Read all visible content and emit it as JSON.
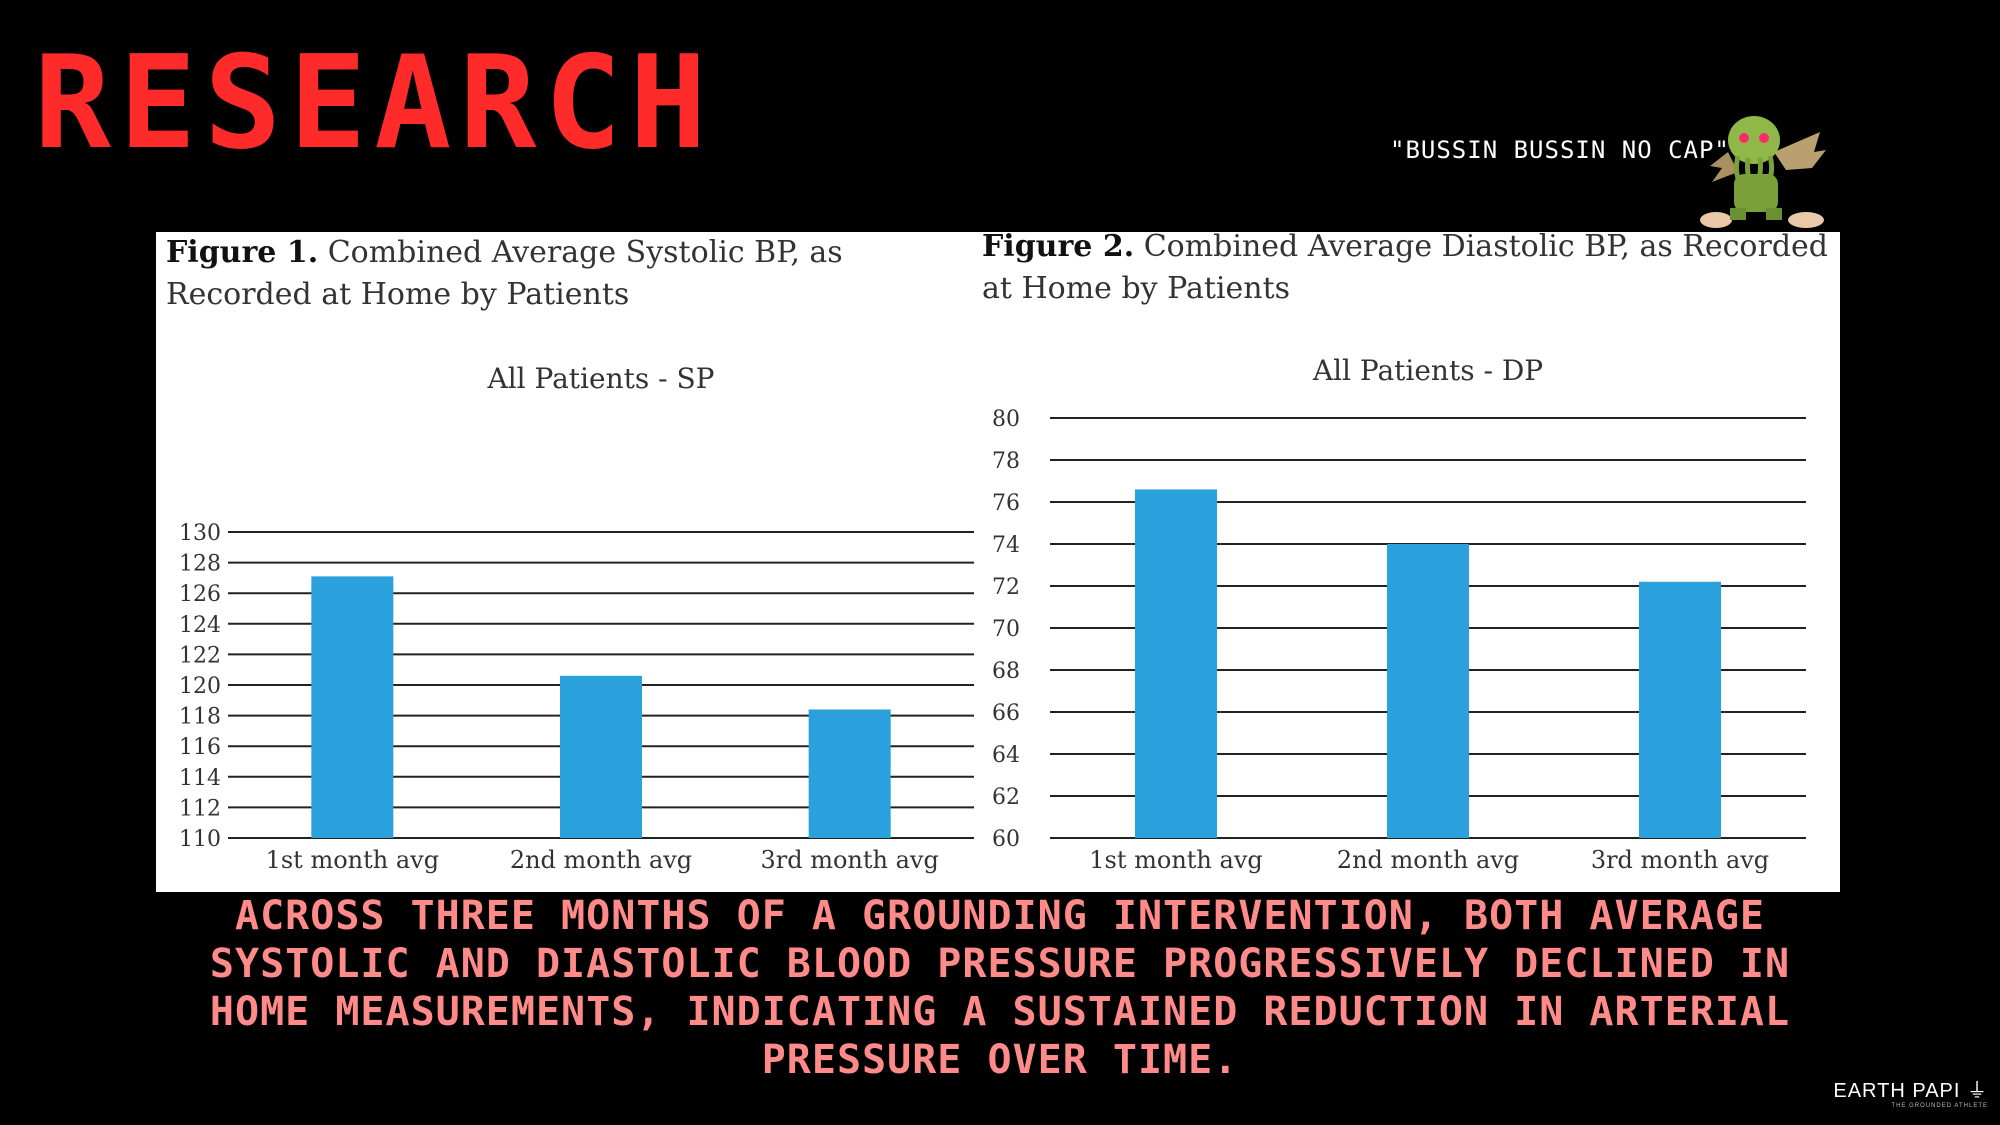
{
  "slide": {
    "title": "RESEARCH",
    "quote": "\"BUSSIN BUSSIN NO CAP\"",
    "summary": "ACROSS THREE MONTHS OF A GROUNDING INTERVENTION, BOTH AVERAGE SYSTOLIC AND DIASTOLIC BLOOD PRESSURE PROGRESSIVELY DECLINED IN HOME MEASUREMENTS, INDICATING A SUSTAINED REDUCTION IN ARTERIAL PRESSURE OVER TIME.",
    "brand": "EARTH PAPI",
    "brand_symbol": "⏚",
    "brand_tagline": "THE GROUNDED ATHLETE",
    "mascot_icon": "tentacled-creature-icon"
  },
  "figures": [
    {
      "label": "Figure 1.",
      "caption": "Combined Average Systolic BP, as Recorded at Home by Patients"
    },
    {
      "label": "Figure 2.",
      "caption": "Combined Average Diastolic BP, as Recorded at Home by Patients"
    }
  ],
  "colors": {
    "title": "#ff2a2a",
    "summary": "#ff8a8a",
    "bar": "#2aa0dc",
    "background": "#000000"
  },
  "chart_data": [
    {
      "type": "bar",
      "title": "All Patients - SP",
      "categories": [
        "1st month avg",
        "2nd month avg",
        "3rd month avg"
      ],
      "values": [
        127.1,
        120.6,
        118.4
      ],
      "ylim": [
        110,
        130
      ],
      "yticks": [
        110,
        112,
        114,
        116,
        118,
        120,
        122,
        124,
        126,
        128,
        130
      ],
      "grid": true,
      "legend": "none",
      "bar_color": "#2aa0dc"
    },
    {
      "type": "bar",
      "title": "All Patients - DP",
      "categories": [
        "1st month avg",
        "2nd month avg",
        "3rd month avg"
      ],
      "values": [
        76.6,
        74.0,
        72.2
      ],
      "ylim": [
        60,
        80
      ],
      "yticks": [
        60,
        62,
        64,
        66,
        68,
        70,
        72,
        74,
        76,
        78,
        80
      ],
      "grid": true,
      "legend": "none",
      "bar_color": "#2aa0dc"
    }
  ]
}
